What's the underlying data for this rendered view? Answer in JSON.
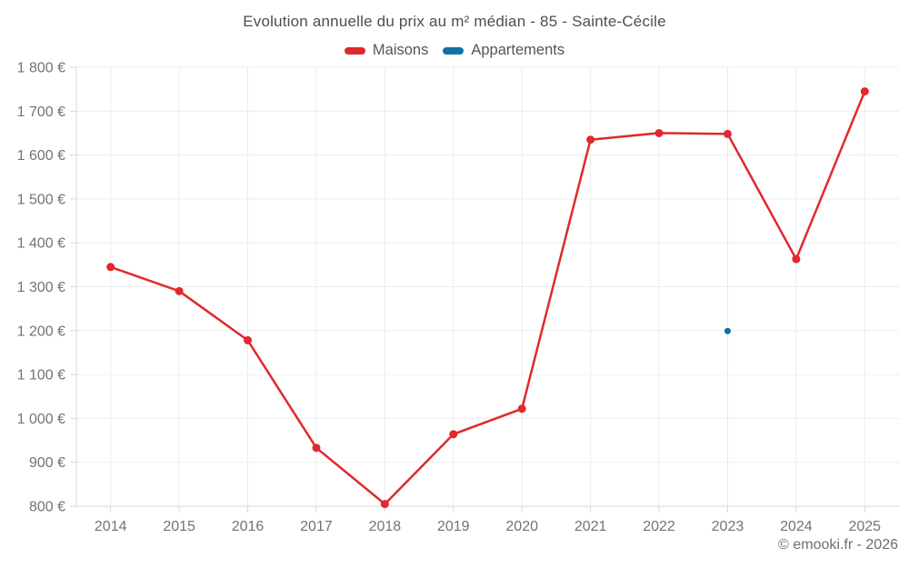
{
  "chart_data": {
    "type": "line",
    "title": "Evolution annuelle du prix au m² médian - 85 - Sainte-Cécile",
    "categories": [
      "2014",
      "2015",
      "2016",
      "2017",
      "2018",
      "2019",
      "2020",
      "2021",
      "2022",
      "2023",
      "2024",
      "2025"
    ],
    "series": [
      {
        "name": "Maisons",
        "color": "#df292d",
        "marker_radius": 4.5,
        "values": [
          1345,
          1290,
          1178,
          933,
          805,
          964,
          1022,
          1635,
          1650,
          1648,
          1363,
          1745
        ]
      },
      {
        "name": "Appartements",
        "color": "#1071a6",
        "marker_radius": 3.5,
        "values": [
          null,
          null,
          null,
          null,
          null,
          null,
          null,
          null,
          null,
          1199,
          null,
          null
        ]
      }
    ],
    "ylim": [
      800,
      1800
    ],
    "yticks": [
      800,
      900,
      1000,
      1100,
      1200,
      1300,
      1400,
      1500,
      1600,
      1700,
      1800
    ],
    "yticklabels": [
      "800 €",
      "900 €",
      "1 000 €",
      "1 100 €",
      "1 200 €",
      "1 300 €",
      "1 400 €",
      "1 500 €",
      "1 600 €",
      "1 700 €",
      "1 800 €"
    ],
    "xlabel": "",
    "ylabel": "",
    "grid": true,
    "grid_color": "#ececec",
    "axis_color": "#d9d9d9",
    "tick_label_color": "#737373",
    "legend_position": "top"
  },
  "footer": {
    "copyright": "© emooki.fr - 2026"
  }
}
